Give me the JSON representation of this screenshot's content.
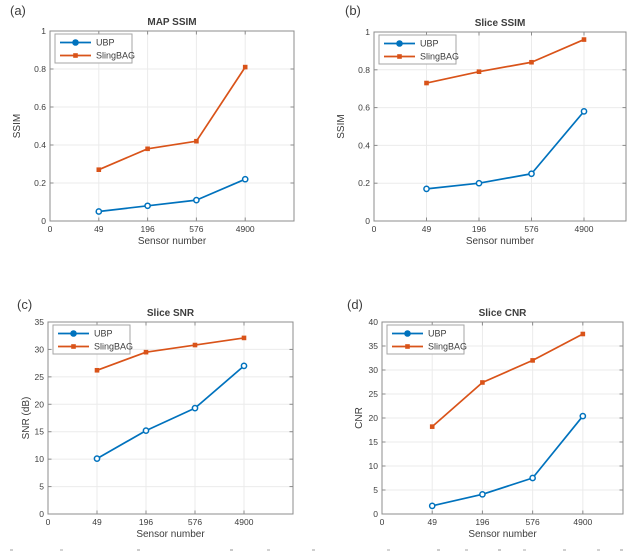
{
  "figure": {
    "colors": {
      "ubp_blue": "#0072BD",
      "slingbag_orange": "#D95319",
      "grid": "#ebebeb",
      "axis_box": "#8c8c8c",
      "text": "#3d3d3d",
      "legend_border": "#a6a6a6",
      "background": "#ffffff"
    }
  },
  "chart_data": [
    {
      "type": "line",
      "panel_label": "(a)",
      "title": "MAP SSIM",
      "xlabel": "Sensor number",
      "ylabel": "SSIM",
      "categories": [
        "49",
        "196",
        "576",
        "4900"
      ],
      "x_tick_labels": [
        "0",
        "49",
        "196",
        "576",
        "4900"
      ],
      "ylim": [
        0,
        1
      ],
      "yticks": [
        0,
        0.2,
        0.4,
        0.6,
        0.8,
        1
      ],
      "ytick_labels": [
        "0",
        "0.2",
        "0.4",
        "0.6",
        "0.8",
        "1"
      ],
      "grid": true,
      "legend_position": "top-left",
      "series": [
        {
          "name": "UBP",
          "color": "#0072BD",
          "marker": "circle-open",
          "values": [
            0.05,
            0.08,
            0.11,
            0.22
          ]
        },
        {
          "name": "SlingBAG",
          "color": "#D95319",
          "marker": "square-filled",
          "values": [
            0.27,
            0.38,
            0.42,
            0.81
          ]
        }
      ]
    },
    {
      "type": "line",
      "panel_label": "(b)",
      "title": "Slice SSIM",
      "xlabel": "Sensor number",
      "ylabel": "SSIM",
      "categories": [
        "49",
        "196",
        "576",
        "4900"
      ],
      "x_tick_labels": [
        "0",
        "49",
        "196",
        "576",
        "4900"
      ],
      "ylim": [
        0,
        1
      ],
      "yticks": [
        0,
        0.2,
        0.4,
        0.6,
        0.8,
        1
      ],
      "ytick_labels": [
        "0",
        "0.2",
        "0.4",
        "0.6",
        "0.8",
        "1"
      ],
      "grid": true,
      "legend_position": "top-left",
      "series": [
        {
          "name": "UBP",
          "color": "#0072BD",
          "marker": "circle-open",
          "values": [
            0.17,
            0.2,
            0.25,
            0.58
          ]
        },
        {
          "name": "SlingBAG",
          "color": "#D95319",
          "marker": "square-filled",
          "values": [
            0.73,
            0.79,
            0.84,
            0.96
          ]
        }
      ]
    },
    {
      "type": "line",
      "panel_label": "(c)",
      "title": "Slice SNR",
      "xlabel": "Sensor number",
      "ylabel": "SNR (dB)",
      "categories": [
        "49",
        "196",
        "576",
        "4900"
      ],
      "x_tick_labels": [
        "0",
        "49",
        "196",
        "576",
        "4900"
      ],
      "ylim": [
        0,
        35
      ],
      "yticks": [
        0,
        5,
        10,
        15,
        20,
        25,
        30,
        35
      ],
      "ytick_labels": [
        "0",
        "5",
        "10",
        "15",
        "20",
        "25",
        "30",
        "35"
      ],
      "grid": true,
      "legend_position": "top-left",
      "series": [
        {
          "name": "UBP",
          "color": "#0072BD",
          "marker": "circle-open",
          "values": [
            10.1,
            15.2,
            19.3,
            27.0
          ]
        },
        {
          "name": "SlingBAG",
          "color": "#D95319",
          "marker": "square-filled",
          "values": [
            26.2,
            29.5,
            30.8,
            32.1
          ]
        }
      ]
    },
    {
      "type": "line",
      "panel_label": "(d)",
      "title": "Slice CNR",
      "xlabel": "Sensor number",
      "ylabel": "CNR",
      "categories": [
        "49",
        "196",
        "576",
        "4900"
      ],
      "x_tick_labels": [
        "0",
        "49",
        "196",
        "576",
        "4900"
      ],
      "ylim": [
        0,
        40
      ],
      "yticks": [
        0,
        5,
        10,
        15,
        20,
        25,
        30,
        35,
        40
      ],
      "ytick_labels": [
        "0",
        "5",
        "10",
        "15",
        "20",
        "25",
        "30",
        "35",
        "40"
      ],
      "grid": true,
      "legend_position": "top-left",
      "series": [
        {
          "name": "UBP",
          "color": "#0072BD",
          "marker": "circle-open",
          "values": [
            1.7,
            4.1,
            7.5,
            20.4
          ]
        },
        {
          "name": "SlingBAG",
          "color": "#D95319",
          "marker": "square-filled",
          "values": [
            18.2,
            27.4,
            32.0,
            37.5
          ]
        }
      ]
    }
  ],
  "legend": {
    "entries": [
      "UBP",
      "SlingBAG"
    ]
  }
}
